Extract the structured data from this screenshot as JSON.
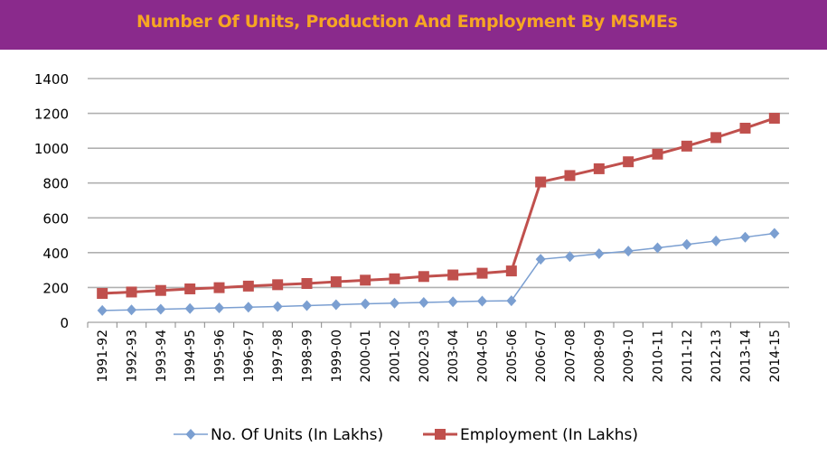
{
  "header": {
    "title": "Number Of Units, Production And Employment By MSMEs"
  },
  "chart_data": {
    "type": "line",
    "title": "Number Of Units, Production And Employment By MSMEs",
    "categories": [
      "1991-92",
      "1992-93",
      "1993-94",
      "1994-95",
      "1995-96",
      "1996-97",
      "1997-98",
      "1998-99",
      "1999-00",
      "2000-01",
      "2001-02",
      "2002-03",
      "2003-04",
      "2004-05",
      "2005-06",
      "2006-07",
      "2007-08",
      "2008-09",
      "2009-10",
      "2010-11",
      "2011-12",
      "2012-13",
      "2013-14",
      "2014-15"
    ],
    "series": [
      {
        "name": "No. Of Units (In Lakhs)",
        "color": "#7b9fd1",
        "marker": "diamond",
        "values": [
          68,
          71,
          75,
          79,
          83,
          87,
          91,
          96,
          101,
          106,
          110,
          114,
          118,
          122,
          124,
          362,
          377,
          394,
          409,
          428,
          447,
          467,
          489,
          511
        ]
      },
      {
        "name": "Employment (In Lakhs)",
        "color": "#c0504d",
        "marker": "square",
        "values": [
          166,
          174,
          183,
          192,
          199,
          208,
          216,
          223,
          233,
          242,
          250,
          263,
          272,
          282,
          295,
          806,
          843,
          882,
          922,
          966,
          1012,
          1061,
          1115,
          1172
        ]
      }
    ],
    "yticks": [
      0,
      200,
      400,
      600,
      800,
      1000,
      1200,
      1400
    ],
    "ylim": [
      0,
      1400
    ],
    "grid": true,
    "legend": "bottom"
  }
}
